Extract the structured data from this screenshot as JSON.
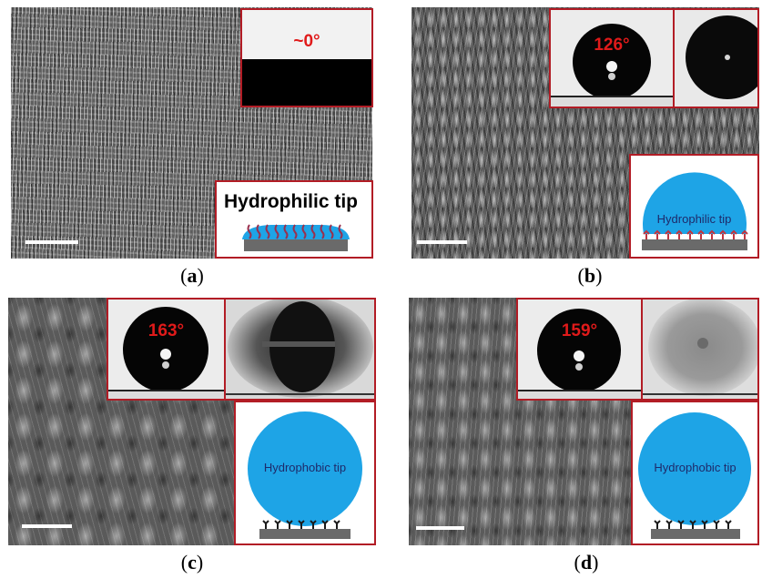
{
  "panels": [
    {
      "label": "a",
      "contact_angle": "~0°",
      "tip_label": "Hydrophilic tip"
    },
    {
      "label": "b",
      "contact_angle": "126°",
      "tip_label": "Hydrophilic tip"
    },
    {
      "label": "c",
      "contact_angle": "163°",
      "tip_label": "Hydrophobic tip"
    },
    {
      "label": "d",
      "contact_angle": "159°",
      "tip_label": "Hydrophobic tip"
    }
  ],
  "colors": {
    "inset_border": "#b21c25",
    "droplet": "#1ea4e6",
    "angle_text": "#e01a1a",
    "hydrophilic_strands": "#9a2f4d"
  }
}
